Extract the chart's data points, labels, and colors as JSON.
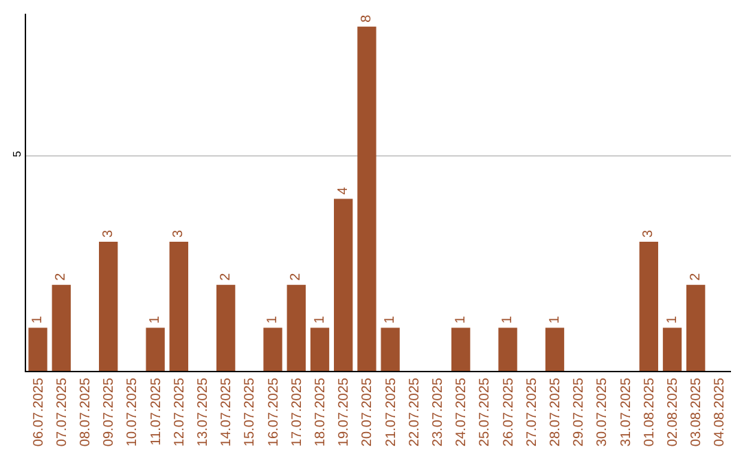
{
  "chart_data": {
    "type": "bar",
    "categories": [
      "06.07.2025",
      "07.07.2025",
      "08.07.2025",
      "09.07.2025",
      "10.07.2025",
      "11.07.2025",
      "12.07.2025",
      "13.07.2025",
      "14.07.2025",
      "15.07.2025",
      "16.07.2025",
      "17.07.2025",
      "18.07.2025",
      "19.07.2025",
      "20.07.2025",
      "21.07.2025",
      "22.07.2025",
      "23.07.2025",
      "24.07.2025",
      "25.07.2025",
      "26.07.2025",
      "27.07.2025",
      "28.07.2025",
      "29.07.2025",
      "30.07.2025",
      "31.07.2025",
      "01.08.2025",
      "02.08.2025",
      "03.08.2025",
      "04.08.2025"
    ],
    "values": [
      1,
      2,
      null,
      3,
      null,
      1,
      3,
      null,
      2,
      null,
      1,
      2,
      1,
      4,
      8,
      1,
      null,
      null,
      1,
      null,
      1,
      null,
      1,
      null,
      null,
      null,
      3,
      1,
      2,
      null
    ],
    "color": "#a0522d",
    "ylim": [
      0,
      8.3
    ],
    "yticks": [
      5
    ],
    "grid": "y",
    "data_labels": true,
    "legend": false
  }
}
